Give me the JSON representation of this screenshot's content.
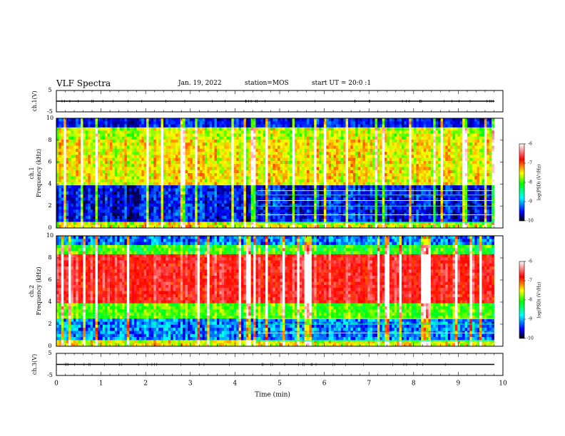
{
  "header": {
    "title": "VLF Spectra",
    "date": "Jan. 19, 2022",
    "station": "station=MOS",
    "start": "start UT = 20:0 :1"
  },
  "colors": {
    "axis": "#000000",
    "spectrogram_scale": [
      "#000000",
      "#0000ff",
      "#00ffff",
      "#00ff00",
      "#ffff00",
      "#ff0000",
      "#ffffff"
    ]
  },
  "colorbars": [
    {
      "label": "log(PSD) (V²/Hz)",
      "ticks": [
        "-6",
        "-7",
        "-8",
        "-9",
        "-10"
      ]
    },
    {
      "label": "log(PSD) (V²/Hz)",
      "ticks": [
        "-6",
        "-7",
        "-8",
        "-9",
        "-10"
      ]
    }
  ],
  "chart_data": [
    {
      "type": "line",
      "panel": "ch1_waveform",
      "ylabel": "ch.1(V)",
      "yticks": [
        "5",
        "-5"
      ],
      "ylim": [
        -5,
        5
      ],
      "x": [
        0,
        10
      ],
      "series": [
        {
          "values": [
            0,
            0
          ]
        }
      ]
    },
    {
      "type": "heatmap",
      "panel": "ch1_spectrogram",
      "ylabel": "ch.1 Frequency (kHz)",
      "yticks": [
        "10",
        "8",
        "6",
        "4",
        "2",
        "0"
      ],
      "ylim": [
        0,
        10
      ],
      "xlim": [
        0,
        9.8
      ],
      "band_lines_khz": [
        0.5,
        1.2,
        2.0,
        2.5,
        3.0,
        3.4
      ],
      "band_lines_start_min": 4.5
    },
    {
      "type": "heatmap",
      "panel": "ch2_spectrogram",
      "ylabel": "ch.2 Frequency (kHz)",
      "yticks": [
        "10",
        "8",
        "6",
        "4",
        "2",
        "0"
      ],
      "ylim": [
        0,
        10
      ],
      "xlim": [
        0,
        9.8
      ],
      "band_lines_khz": [
        0.5,
        1.2,
        2.0,
        2.5
      ],
      "band_lines_start_min": 4.5
    },
    {
      "type": "line",
      "panel": "ch3_waveform",
      "ylabel": "ch.3(V)",
      "yticks": [
        "5",
        "-5"
      ],
      "ylim": [
        -5,
        5
      ],
      "xlabel": "Time (min)",
      "xticks": [
        "0",
        "1",
        "2",
        "3",
        "4",
        "5",
        "6",
        "7",
        "8",
        "9",
        "10"
      ],
      "xlim": [
        0,
        10
      ],
      "x": [
        0,
        10
      ],
      "series": [
        {
          "values": [
            0,
            0
          ]
        }
      ]
    }
  ]
}
